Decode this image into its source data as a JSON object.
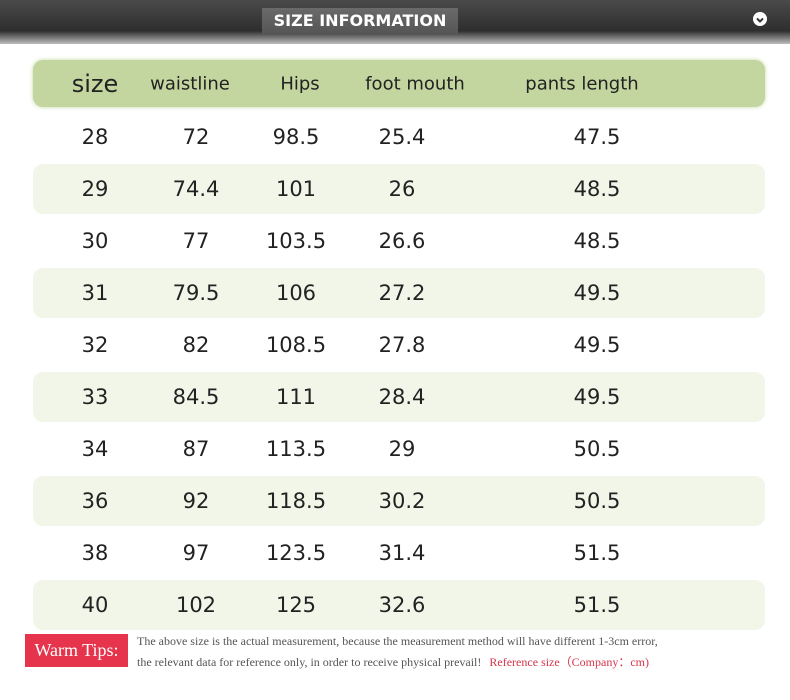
{
  "header": {
    "title": "SIZE INFORMATION"
  },
  "table": {
    "columns": [
      "size",
      "waistline",
      "Hips",
      "foot mouth",
      "pants length"
    ],
    "rows": [
      [
        28,
        72,
        98.5,
        25.4,
        47.5
      ],
      [
        29,
        74.4,
        101,
        26,
        48.5
      ],
      [
        30,
        77,
        103.5,
        26.6,
        48.5
      ],
      [
        31,
        79.5,
        106,
        27.2,
        49.5
      ],
      [
        32,
        82,
        108.5,
        27.8,
        49.5
      ],
      [
        33,
        84.5,
        111,
        28.4,
        49.5
      ],
      [
        34,
        87,
        113.5,
        29,
        50.5
      ],
      [
        36,
        92,
        118.5,
        30.2,
        50.5
      ],
      [
        38,
        97,
        123.5,
        31.4,
        51.5
      ],
      [
        40,
        102,
        125,
        32.6,
        51.5
      ]
    ]
  },
  "tips": {
    "label": "Warm Tips:",
    "lines": [
      "The above size is the actual measurement, because the measurement method will have different 1-3cm error,",
      "the relevant data for reference only, in order to receive physical prevail!"
    ],
    "reference": "Reference size（Company：cm)"
  }
}
